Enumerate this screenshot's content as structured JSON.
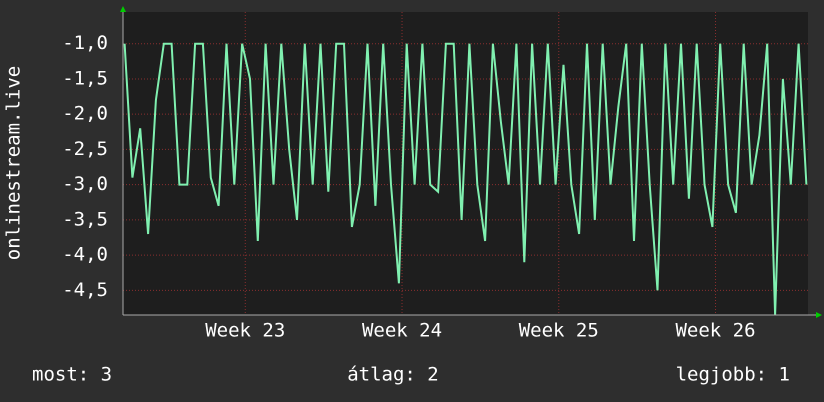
{
  "chart_data": {
    "type": "line",
    "y_label": "onlinestream.live",
    "x": [
      22.23,
      22.28,
      22.33,
      22.38,
      22.43,
      22.48,
      22.53,
      22.58,
      22.63,
      22.68,
      22.73,
      22.78,
      22.83,
      22.88,
      22.93,
      22.98,
      23.03,
      23.08,
      23.13,
      23.18,
      23.23,
      23.28,
      23.33,
      23.38,
      23.43,
      23.48,
      23.53,
      23.58,
      23.63,
      23.68,
      23.73,
      23.78,
      23.83,
      23.88,
      23.93,
      23.98,
      24.03,
      24.08,
      24.13,
      24.18,
      24.23,
      24.28,
      24.33,
      24.38,
      24.43,
      24.48,
      24.53,
      24.58,
      24.63,
      24.68,
      24.73,
      24.78,
      24.83,
      24.88,
      24.93,
      24.98,
      25.03,
      25.08,
      25.13,
      25.18,
      25.23,
      25.28,
      25.33,
      25.38,
      25.43,
      25.48,
      25.53,
      25.58,
      25.63,
      25.68,
      25.73,
      25.78,
      25.83,
      25.88,
      25.93,
      25.98,
      26.03,
      26.08,
      26.13,
      26.18,
      26.23,
      26.28,
      26.33,
      26.38,
      26.43,
      26.48,
      26.53,
      26.58
    ],
    "series": [
      {
        "color": "#80f0b0",
        "values": [
          -1,
          -2.9,
          -2.2,
          -3.7,
          -1.8,
          -1,
          -1,
          -3,
          -3,
          -1,
          -1,
          -2.9,
          -3.3,
          -1,
          -3,
          -1,
          -1.5,
          -3.8,
          -1,
          -3,
          -1,
          -2.5,
          -3.5,
          -1,
          -3,
          -1,
          -3.1,
          -1,
          -1,
          -3.6,
          -3,
          -1,
          -3.3,
          -1,
          -3,
          -4.4,
          -1,
          -3,
          -1,
          -3,
          -3.1,
          -1,
          -1,
          -3.5,
          -1,
          -3,
          -3.8,
          -1,
          -2.1,
          -3,
          -1,
          -4.1,
          -1,
          -3,
          -1,
          -3,
          -1.3,
          -3,
          -3.7,
          -1,
          -3.5,
          -1,
          -3,
          -1.9,
          -1,
          -3.8,
          -1,
          -3,
          -4.5,
          -1,
          -3,
          -1,
          -3.2,
          -1,
          -3,
          -3.6,
          -1,
          -3,
          -3.4,
          -1,
          -3,
          -2.3,
          -1,
          -4.85,
          -1.5,
          -3,
          -1,
          -3
        ]
      }
    ],
    "xlim": [
      22.22,
      26.59
    ],
    "xticks": [
      {
        "value": 23,
        "label": "Week 23"
      },
      {
        "value": 24,
        "label": "Week 24"
      },
      {
        "value": 25,
        "label": "Week 25"
      },
      {
        "value": 26,
        "label": "Week 26"
      }
    ],
    "ylim": [
      -4.85,
      -0.55
    ],
    "yticks": [
      {
        "value": -1,
        "label": "-1,0"
      },
      {
        "value": -1.5,
        "label": "-1,5"
      },
      {
        "value": -2,
        "label": "-2,0"
      },
      {
        "value": -2.5,
        "label": "-2,5"
      },
      {
        "value": -3,
        "label": "-3,0"
      },
      {
        "value": -3.5,
        "label": "-3,5"
      },
      {
        "value": -4,
        "label": "-4,0"
      },
      {
        "value": -4.5,
        "label": "-4,5"
      }
    ],
    "grid": true,
    "legend_stats": [
      "most: 3",
      "átlag: 2",
      "legjobb: 1"
    ]
  }
}
